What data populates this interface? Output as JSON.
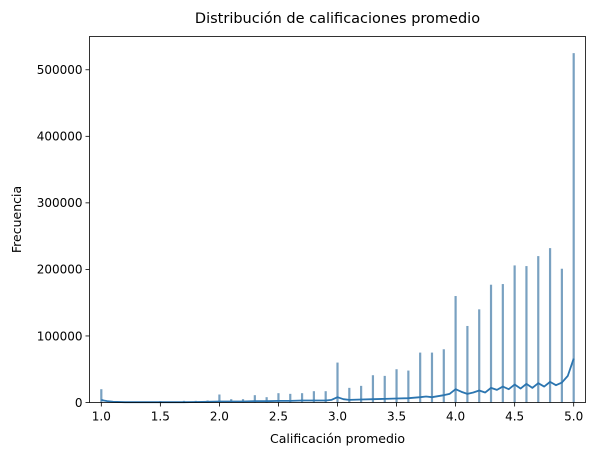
{
  "chart_data": {
    "type": "bar",
    "title": "Distribución de calificaciones promedio",
    "xlabel": "Calificación promedio",
    "ylabel": "Frecuencia",
    "xlim": [
      0.9,
      5.1
    ],
    "ylim": [
      0,
      550000
    ],
    "xticks": [
      1.0,
      1.5,
      2.0,
      2.5,
      3.0,
      3.5,
      4.0,
      4.5,
      5.0
    ],
    "xtick_labels": [
      "1.0",
      "1.5",
      "2.0",
      "2.5",
      "3.0",
      "3.5",
      "4.0",
      "4.5",
      "5.0"
    ],
    "yticks": [
      0,
      100000,
      200000,
      300000,
      400000,
      500000
    ],
    "ytick_labels": [
      "0",
      "100000",
      "200000",
      "300000",
      "400000",
      "500000"
    ],
    "grid": false,
    "bar_color": "#6a97ba",
    "kde_color": "#2b75b0",
    "series": [
      {
        "kind": "histogram",
        "x": [
          1.0,
          1.1,
          1.2,
          1.3,
          1.4,
          1.5,
          1.6,
          1.7,
          1.8,
          1.9,
          2.0,
          2.1,
          2.2,
          2.3,
          2.4,
          2.5,
          2.6,
          2.7,
          2.8,
          2.9,
          3.0,
          3.1,
          3.2,
          3.3,
          3.4,
          3.5,
          3.6,
          3.7,
          3.8,
          3.9,
          4.0,
          4.1,
          4.2,
          4.3,
          4.4,
          4.5,
          4.6,
          4.7,
          4.8,
          4.9,
          5.0
        ],
        "values": [
          20000,
          1000,
          1000,
          1000,
          1500,
          2000,
          1500,
          2500,
          2500,
          3000,
          12000,
          5000,
          5000,
          11000,
          8000,
          14000,
          13000,
          14000,
          17000,
          17000,
          60000,
          22000,
          25000,
          41000,
          40000,
          50000,
          48000,
          75000,
          75000,
          80000,
          160000,
          115000,
          140000,
          177000,
          178000,
          206000,
          205000,
          220000,
          232000,
          201000,
          525000
        ]
      },
      {
        "kind": "kde",
        "x": [
          1.0,
          1.02,
          1.05,
          1.1,
          1.2,
          1.3,
          1.4,
          1.5,
          1.6,
          1.7,
          1.8,
          1.9,
          2.0,
          2.1,
          2.2,
          2.3,
          2.4,
          2.5,
          2.6,
          2.7,
          2.8,
          2.9,
          2.95,
          3.0,
          3.05,
          3.1,
          3.2,
          3.3,
          3.4,
          3.5,
          3.6,
          3.7,
          3.75,
          3.8,
          3.9,
          3.95,
          4.0,
          4.05,
          4.1,
          4.15,
          4.2,
          4.25,
          4.3,
          4.35,
          4.4,
          4.45,
          4.5,
          4.55,
          4.6,
          4.65,
          4.7,
          4.75,
          4.8,
          4.85,
          4.9,
          4.95,
          5.0
        ],
        "values": [
          4000,
          3000,
          2000,
          1000,
          500,
          500,
          500,
          500,
          500,
          500,
          700,
          1000,
          1500,
          1500,
          1500,
          2000,
          2000,
          2500,
          2500,
          3000,
          3000,
          3000,
          4000,
          8000,
          5000,
          4000,
          4500,
          5000,
          5500,
          6000,
          6500,
          8000,
          9000,
          8000,
          11000,
          13000,
          20000,
          16000,
          13000,
          15000,
          18000,
          15000,
          22000,
          19000,
          24000,
          20000,
          27000,
          21000,
          28000,
          22000,
          29000,
          24000,
          31000,
          26000,
          30000,
          40000,
          66000
        ]
      }
    ]
  }
}
